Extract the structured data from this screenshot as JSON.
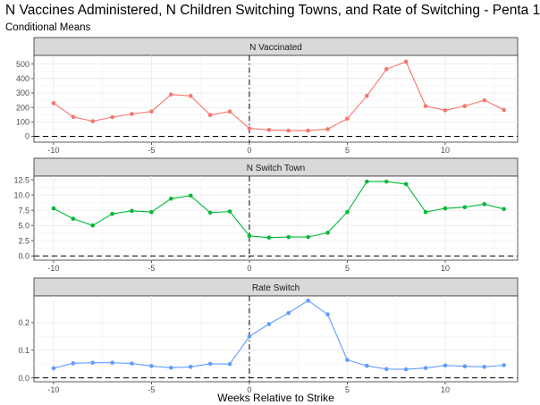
{
  "title": "N Vaccines Administered, N Children Switching Towns, and Rate of Switching - Penta 1",
  "subtitle": "Conditional Means",
  "xlabel": "Weeks Relative to Strike",
  "chart_data": [
    {
      "type": "line",
      "facet_label": "N Vaccinated",
      "color": "#F8766D",
      "x": [
        -10,
        -9,
        -8,
        -7,
        -6,
        -5,
        -4,
        -3,
        -2,
        -1,
        0,
        1,
        2,
        3,
        4,
        5,
        6,
        7,
        8,
        9,
        10,
        11,
        12,
        13
      ],
      "values": [
        230,
        135,
        105,
        133,
        155,
        172,
        290,
        280,
        148,
        172,
        55,
        45,
        40,
        40,
        50,
        122,
        280,
        465,
        517,
        210,
        180,
        210,
        250,
        183
      ],
      "ylim": [
        -40,
        560
      ],
      "yticks": [
        0,
        100,
        200,
        300,
        400,
        500
      ],
      "ytick_labels": [
        "0",
        "100",
        "200",
        "300",
        "400",
        "500"
      ]
    },
    {
      "type": "line",
      "facet_label": "N Switch Town",
      "color": "#00BA38",
      "x": [
        -10,
        -9,
        -8,
        -7,
        -6,
        -5,
        -4,
        -3,
        -2,
        -1,
        0,
        1,
        2,
        3,
        4,
        5,
        6,
        7,
        8,
        9,
        10,
        11,
        12,
        13
      ],
      "values": [
        7.8,
        6.1,
        5.0,
        6.9,
        7.4,
        7.2,
        9.4,
        9.9,
        7.1,
        7.3,
        3.3,
        3.0,
        3.1,
        3.1,
        3.8,
        7.2,
        12.2,
        12.2,
        11.8,
        7.2,
        7.8,
        8.0,
        8.5,
        7.7
      ],
      "ylim": [
        -0.7,
        13.1
      ],
      "yticks": [
        0,
        2.5,
        5,
        7.5,
        10,
        12.5
      ],
      "ytick_labels": [
        "0.0",
        "2.5",
        "5.0",
        "7.5",
        "10.0",
        "12.5"
      ]
    },
    {
      "type": "line",
      "facet_label": "Rate Switch",
      "color": "#619CFF",
      "x": [
        -10,
        -9,
        -8,
        -7,
        -6,
        -5,
        -4,
        -3,
        -2,
        -1,
        0,
        1,
        2,
        3,
        4,
        5,
        6,
        7,
        8,
        9,
        10,
        11,
        12,
        13
      ],
      "values": [
        0.035,
        0.053,
        0.055,
        0.055,
        0.052,
        0.043,
        0.037,
        0.04,
        0.051,
        0.05,
        0.15,
        0.195,
        0.235,
        0.28,
        0.23,
        0.065,
        0.044,
        0.032,
        0.031,
        0.036,
        0.045,
        0.042,
        0.04,
        0.046
      ],
      "ylim": [
        -0.014,
        0.297
      ],
      "yticks": [
        0,
        0.1,
        0.2
      ],
      "ytick_labels": [
        "0.0",
        "0.1",
        "0.2"
      ]
    }
  ],
  "x_axis": {
    "xlim": [
      -11,
      13.7
    ],
    "xticks": [
      -10,
      -5,
      0,
      5,
      10
    ],
    "xtick_labels": [
      "-10",
      "-5",
      "0",
      "5",
      "10"
    ]
  },
  "reference_lines": {
    "vertical_x": 0,
    "horizontal_y": 0
  },
  "grid": true
}
